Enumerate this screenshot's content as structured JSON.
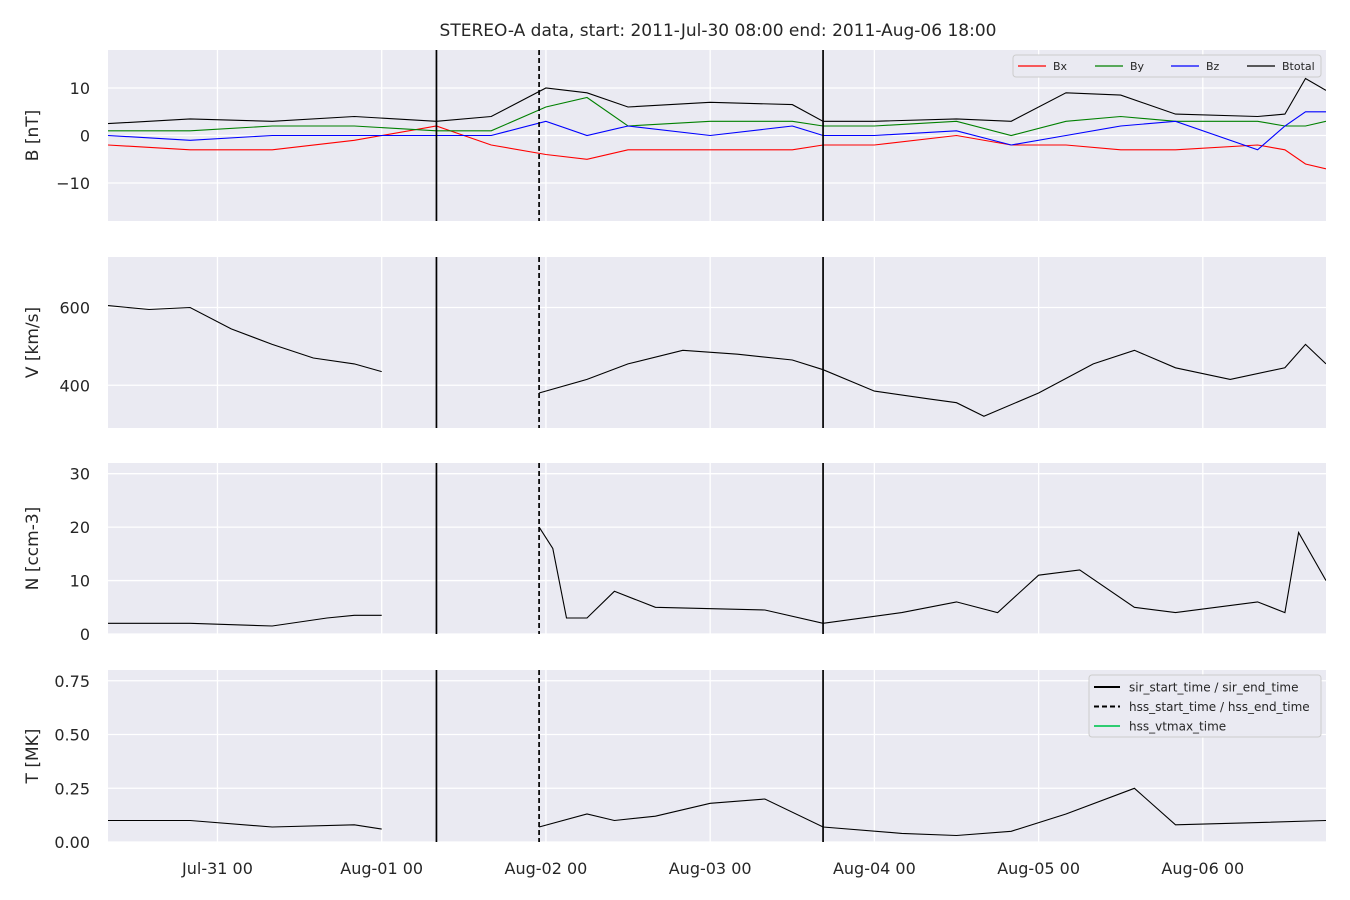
{
  "figure": {
    "title": "STEREO-A data, start: 2011-Jul-30 08:00  end: 2011-Aug-06 18:00"
  },
  "chart_data": {
    "type": "line",
    "title": "STEREO-A data, start: 2011-Jul-30 08:00  end: 2011-Aug-06 18:00",
    "x_range": [
      "2011-07-30 08:00",
      "2011-08-06 18:00"
    ],
    "x_ticks": [
      {
        "t": "2011-07-31 00:00",
        "label": "Jul-31 00"
      },
      {
        "t": "2011-08-01 00:00",
        "label": "Aug-01 00"
      },
      {
        "t": "2011-08-02 00:00",
        "label": "Aug-02 00"
      },
      {
        "t": "2011-08-03 00:00",
        "label": "Aug-03 00"
      },
      {
        "t": "2011-08-04 00:00",
        "label": "Aug-04 00"
      },
      {
        "t": "2011-08-05 00:00",
        "label": "Aug-05 00"
      },
      {
        "t": "2011-08-06 00:00",
        "label": "Aug-06 00"
      }
    ],
    "grid": true,
    "background": "#eaeaf2",
    "event_lines": [
      {
        "t": "2011-08-01 08:00",
        "style": "solid",
        "kind": "sir_start_time / sir_end_time"
      },
      {
        "t": "2011-08-01 23:00",
        "style": "dashed",
        "kind": "hss_start_time / hss_end_time"
      },
      {
        "t": "2011-08-03 16:30",
        "style": "solid",
        "kind": "sir_start_time / sir_end_time"
      }
    ],
    "panels": [
      {
        "id": "B",
        "ylabel": "B [nT]",
        "ylim": [
          -18,
          18
        ],
        "yticks": [
          -10,
          0,
          10
        ],
        "ytick_labels": [
          "−10",
          "0",
          "10"
        ],
        "legend": {
          "placement": "top-right",
          "entries": [
            "Bx",
            "By",
            "Bz",
            "Btotal"
          ]
        },
        "series": [
          {
            "name": "Btotal",
            "color": "#000000",
            "t": [
              "2011-07-30 08:00",
              "2011-07-30 20:00",
              "2011-07-31 08:00",
              "2011-07-31 20:00",
              "2011-08-01 08:00",
              "2011-08-01 16:00",
              "2011-08-02 00:00",
              "2011-08-02 06:00",
              "2011-08-02 12:00",
              "2011-08-03 00:00",
              "2011-08-03 12:00",
              "2011-08-03 16:30",
              "2011-08-04 00:00",
              "2011-08-04 12:00",
              "2011-08-04 20:00",
              "2011-08-05 04:00",
              "2011-08-05 12:00",
              "2011-08-05 20:00",
              "2011-08-06 08:00",
              "2011-08-06 12:00",
              "2011-08-06 15:00",
              "2011-08-06 18:00"
            ],
            "y": [
              2.5,
              3.5,
              3,
              4,
              3,
              4,
              10,
              9,
              6,
              7,
              6.5,
              3,
              3,
              3.5,
              3,
              9,
              8.5,
              4.5,
              4,
              4.5,
              12,
              9.5
            ]
          },
          {
            "name": "Bx",
            "color": "#ff0000",
            "t": [
              "2011-07-30 08:00",
              "2011-07-30 20:00",
              "2011-07-31 08:00",
              "2011-07-31 20:00",
              "2011-08-01 08:00",
              "2011-08-01 16:00",
              "2011-08-02 00:00",
              "2011-08-02 06:00",
              "2011-08-02 12:00",
              "2011-08-03 00:00",
              "2011-08-03 12:00",
              "2011-08-03 16:30",
              "2011-08-04 00:00",
              "2011-08-04 12:00",
              "2011-08-04 20:00",
              "2011-08-05 04:00",
              "2011-08-05 12:00",
              "2011-08-05 20:00",
              "2011-08-06 08:00",
              "2011-08-06 12:00",
              "2011-08-06 15:00",
              "2011-08-06 18:00"
            ],
            "y": [
              -2,
              -3,
              -3,
              -1,
              2,
              -2,
              -4,
              -5,
              -3,
              -3,
              -3,
              -2,
              -2,
              0,
              -2,
              -2,
              -3,
              -3,
              -2,
              -3,
              -6,
              -7
            ]
          },
          {
            "name": "By",
            "color": "#008000",
            "t": [
              "2011-07-30 08:00",
              "2011-07-30 20:00",
              "2011-07-31 08:00",
              "2011-07-31 20:00",
              "2011-08-01 08:00",
              "2011-08-01 16:00",
              "2011-08-02 00:00",
              "2011-08-02 06:00",
              "2011-08-02 12:00",
              "2011-08-03 00:00",
              "2011-08-03 12:00",
              "2011-08-03 16:30",
              "2011-08-04 00:00",
              "2011-08-04 12:00",
              "2011-08-04 20:00",
              "2011-08-05 04:00",
              "2011-08-05 12:00",
              "2011-08-05 20:00",
              "2011-08-06 08:00",
              "2011-08-06 12:00",
              "2011-08-06 15:00",
              "2011-08-06 18:00"
            ],
            "y": [
              1,
              1,
              2,
              2,
              1,
              1,
              6,
              8,
              2,
              3,
              3,
              2,
              2,
              3,
              0,
              3,
              4,
              3,
              3,
              2,
              2,
              3
            ]
          },
          {
            "name": "Bz",
            "color": "#0000ff",
            "t": [
              "2011-07-30 08:00",
              "2011-07-30 20:00",
              "2011-07-31 08:00",
              "2011-07-31 20:00",
              "2011-08-01 08:00",
              "2011-08-01 16:00",
              "2011-08-02 00:00",
              "2011-08-02 06:00",
              "2011-08-02 12:00",
              "2011-08-03 00:00",
              "2011-08-03 12:00",
              "2011-08-03 16:30",
              "2011-08-04 00:00",
              "2011-08-04 12:00",
              "2011-08-04 20:00",
              "2011-08-05 04:00",
              "2011-08-05 12:00",
              "2011-08-05 20:00",
              "2011-08-06 08:00",
              "2011-08-06 12:00",
              "2011-08-06 15:00",
              "2011-08-06 18:00"
            ],
            "y": [
              0,
              -1,
              0,
              0,
              0,
              0,
              3,
              0,
              2,
              0,
              2,
              0,
              0,
              1,
              -2,
              0,
              2,
              3,
              -3,
              2,
              5,
              5
            ]
          }
        ]
      },
      {
        "id": "V",
        "ylabel": "V [km/s]",
        "ylim": [
          290,
          730
        ],
        "yticks": [
          400,
          600
        ],
        "ytick_labels": [
          "400",
          "600"
        ],
        "series": [
          {
            "name": "V",
            "color": "#000000",
            "t": [
              "2011-07-30 08:00",
              "2011-07-30 14:00",
              "2011-07-30 20:00",
              "2011-07-31 02:00",
              "2011-07-31 08:00",
              "2011-07-31 14:00",
              "2011-07-31 20:00",
              "2011-08-01 00:00",
              null,
              "2011-08-01 23:00",
              "2011-08-02 06:00",
              "2011-08-02 12:00",
              "2011-08-02 20:00",
              "2011-08-03 04:00",
              "2011-08-03 12:00",
              "2011-08-03 16:30",
              "2011-08-04 00:00",
              "2011-08-04 08:00",
              "2011-08-04 12:00",
              "2011-08-04 16:00",
              "2011-08-05 00:00",
              "2011-08-05 08:00",
              "2011-08-05 14:00",
              "2011-08-05 20:00",
              "2011-08-06 04:00",
              "2011-08-06 12:00",
              "2011-08-06 15:00",
              "2011-08-06 18:00"
            ],
            "y": [
              605,
              595,
              600,
              545,
              505,
              470,
              455,
              435,
              null,
              380,
              415,
              455,
              490,
              480,
              465,
              440,
              385,
              365,
              355,
              320,
              380,
              455,
              490,
              445,
              415,
              445,
              505,
              455
            ]
          }
        ]
      },
      {
        "id": "N",
        "ylabel": "N [ccm-3]",
        "ylim": [
          0,
          32
        ],
        "yticks": [
          0,
          10,
          20,
          30
        ],
        "ytick_labels": [
          "0",
          "10",
          "20",
          "30"
        ],
        "series": [
          {
            "name": "N",
            "color": "#000000",
            "t": [
              "2011-07-30 08:00",
              "2011-07-30 20:00",
              "2011-07-31 08:00",
              "2011-07-31 16:00",
              "2011-07-31 20:00",
              "2011-08-01 00:00",
              null,
              "2011-08-01 23:00",
              "2011-08-02 01:00",
              "2011-08-02 03:00",
              "2011-08-02 06:00",
              "2011-08-02 10:00",
              "2011-08-02 16:00",
              "2011-08-03 08:00",
              "2011-08-03 16:30",
              "2011-08-04 04:00",
              "2011-08-04 12:00",
              "2011-08-04 18:00",
              "2011-08-05 00:00",
              "2011-08-05 06:00",
              "2011-08-05 14:00",
              "2011-08-05 20:00",
              "2011-08-06 08:00",
              "2011-08-06 12:00",
              "2011-08-06 14:00",
              "2011-08-06 18:00"
            ],
            "y": [
              2,
              2,
              1.5,
              3,
              3.5,
              3.5,
              null,
              20,
              16,
              3,
              3,
              8,
              5,
              4.5,
              2,
              4,
              6,
              4,
              11,
              12,
              5,
              4,
              6,
              4,
              19,
              10
            ]
          }
        ]
      },
      {
        "id": "T",
        "ylabel": "T [MK]",
        "ylim": [
          0,
          0.8
        ],
        "yticks": [
          0,
          0.25,
          0.5,
          0.75
        ],
        "ytick_labels": [
          "0.00",
          "0.25",
          "0.50",
          "0.75"
        ],
        "legend": {
          "placement": "top-right",
          "entries": [
            "sir_start_time / sir_end_time",
            "hss_start_time / hss_end_time",
            "hss_vtmax_time"
          ]
        },
        "series": [
          {
            "name": "T",
            "color": "#000000",
            "t": [
              "2011-07-30 08:00",
              "2011-07-30 20:00",
              "2011-07-31 08:00",
              "2011-07-31 20:00",
              "2011-08-01 00:00",
              null,
              "2011-08-01 23:00",
              "2011-08-02 06:00",
              "2011-08-02 10:00",
              "2011-08-02 16:00",
              "2011-08-03 00:00",
              "2011-08-03 08:00",
              "2011-08-03 16:30",
              "2011-08-04 04:00",
              "2011-08-04 12:00",
              "2011-08-04 20:00",
              "2011-08-05 04:00",
              "2011-08-05 14:00",
              "2011-08-05 20:00",
              "2011-08-06 08:00",
              "2011-08-06 18:00"
            ],
            "y": [
              0.1,
              0.1,
              0.07,
              0.08,
              0.06,
              null,
              0.07,
              0.13,
              0.1,
              0.12,
              0.18,
              0.2,
              0.07,
              0.04,
              0.03,
              0.05,
              0.13,
              0.25,
              0.08,
              0.09,
              0.1
            ]
          }
        ]
      }
    ]
  }
}
